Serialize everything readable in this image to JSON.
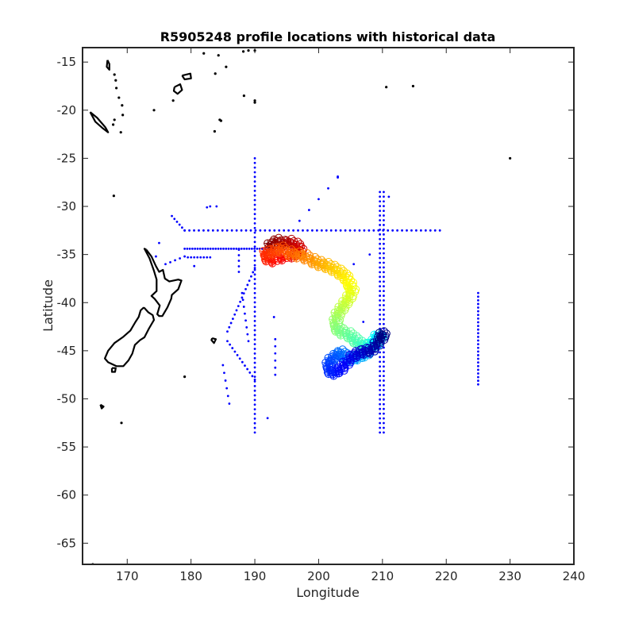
{
  "chart_data": {
    "type": "scatter",
    "title": "R5905248 profile locations with historical data",
    "xlabel": "Longitude",
    "ylabel": "Latitude",
    "xlim": [
      163,
      240
    ],
    "ylim": [
      -67.2,
      -13.5
    ],
    "xticks": [
      170,
      180,
      190,
      200,
      210,
      220,
      230,
      240
    ],
    "yticks": [
      -15,
      -20,
      -25,
      -30,
      -35,
      -40,
      -45,
      -50,
      -55,
      -60,
      -65
    ],
    "grid": false,
    "colors": {
      "historical": "#0000ff",
      "coast": "#000000",
      "axes": "#262626"
    },
    "colormap": "jet",
    "historical_data": {
      "marker": "dot",
      "segments": [
        {
          "from": [
            179,
            -32.5
          ],
          "to": [
            219,
            -32.5
          ],
          "n": 55
        },
        {
          "from": [
            190,
            -25
          ],
          "to": [
            190,
            -53.5
          ],
          "n": 60
        },
        {
          "from": [
            209.6,
            -28.5
          ],
          "to": [
            209.6,
            -53.5
          ],
          "n": 52
        },
        {
          "from": [
            210.2,
            -28.5
          ],
          "to": [
            210.2,
            -53.5
          ],
          "n": 52
        },
        {
          "from": [
            225,
            -39
          ],
          "to": [
            225,
            -48.5
          ],
          "n": 26
        },
        {
          "from": [
            177,
            -31
          ],
          "to": [
            179,
            -32.5
          ],
          "n": 6
        },
        {
          "from": [
            179,
            -34.4
          ],
          "to": [
            194,
            -34.4
          ],
          "n": 38
        },
        {
          "from": [
            179.5,
            -35.3
          ],
          "to": [
            183,
            -35.3
          ],
          "n": 8
        },
        {
          "from": [
            176,
            -36
          ],
          "to": [
            179,
            -35.2
          ],
          "n": 5
        },
        {
          "from": [
            190,
            -36.4
          ],
          "to": [
            185.7,
            -43
          ],
          "n": 16
        },
        {
          "from": [
            185.7,
            -44
          ],
          "to": [
            190,
            -48
          ],
          "n": 12
        },
        {
          "from": [
            188,
            -39
          ],
          "to": [
            189,
            -44
          ],
          "n": 8
        },
        {
          "from": [
            185,
            -46.5
          ],
          "to": [
            186,
            -50.5
          ],
          "n": 6
        },
        {
          "from": [
            197,
            -31.5
          ],
          "to": [
            203,
            -27
          ],
          "n": 5
        },
        {
          "from": [
            187.5,
            -34.5
          ],
          "to": [
            187.5,
            -36.8
          ],
          "n": 5
        },
        {
          "from": [
            193.2,
            -43.8
          ],
          "to": [
            193.2,
            -47.5
          ],
          "n": 6
        }
      ],
      "points": [
        [
          182.5,
          -30.1
        ],
        [
          183,
          -30
        ],
        [
          184,
          -30
        ],
        [
          175,
          -33.8
        ],
        [
          174.5,
          -35.2
        ],
        [
          180.5,
          -36.2
        ],
        [
          193,
          -41.5
        ],
        [
          192,
          -52
        ],
        [
          205.5,
          -36
        ],
        [
          207,
          -42
        ],
        [
          211,
          -29
        ],
        [
          203,
          -26.9
        ],
        [
          208,
          -35
        ]
      ]
    },
    "float_track": {
      "marker": "open-circle-and-plus",
      "color_scale": "jet (earliest = dark red, latest = dark blue)",
      "points": [
        [
          192.5,
          -34.0
        ],
        [
          193.5,
          -33.6
        ],
        [
          194.5,
          -33.8
        ],
        [
          195.5,
          -33.7
        ],
        [
          196.5,
          -34.0
        ],
        [
          197.0,
          -34.5
        ],
        [
          196.0,
          -35.0
        ],
        [
          194.5,
          -35.2
        ],
        [
          193.0,
          -35.5
        ],
        [
          192.0,
          -35.3
        ],
        [
          191.8,
          -34.8
        ],
        [
          193.0,
          -34.6
        ],
        [
          194.2,
          -34.4
        ],
        [
          195.5,
          -34.8
        ],
        [
          196.8,
          -35.0
        ],
        [
          198.0,
          -35.2
        ],
        [
          199.2,
          -35.6
        ],
        [
          200.2,
          -35.9
        ],
        [
          201.3,
          -36.1
        ],
        [
          202.3,
          -36.4
        ],
        [
          203.3,
          -36.8
        ],
        [
          204.2,
          -37.3
        ],
        [
          204.8,
          -38.0
        ],
        [
          205.2,
          -38.7
        ],
        [
          204.8,
          -39.4
        ],
        [
          204.2,
          -40.0
        ],
        [
          203.6,
          -40.6
        ],
        [
          203.0,
          -41.2
        ],
        [
          202.7,
          -41.9
        ],
        [
          202.9,
          -42.6
        ],
        [
          203.7,
          -43.0
        ],
        [
          204.8,
          -43.3
        ],
        [
          205.7,
          -43.8
        ],
        [
          206.6,
          -44.3
        ],
        [
          207.4,
          -44.5
        ],
        [
          208.1,
          -44.4
        ],
        [
          208.8,
          -44.0
        ],
        [
          209.2,
          -43.5
        ],
        [
          209.5,
          -43.6
        ],
        [
          209.0,
          -44.2
        ],
        [
          208.3,
          -44.9
        ],
        [
          207.4,
          -45.3
        ],
        [
          206.3,
          -45.6
        ],
        [
          205.3,
          -45.8
        ],
        [
          204.3,
          -45.6
        ],
        [
          203.5,
          -45.2
        ],
        [
          202.8,
          -45.5
        ],
        [
          202.0,
          -45.9
        ],
        [
          201.6,
          -46.4
        ],
        [
          201.8,
          -47.0
        ],
        [
          202.6,
          -47.2
        ],
        [
          203.5,
          -46.9
        ],
        [
          204.3,
          -46.3
        ],
        [
          205.3,
          -45.6
        ],
        [
          206.3,
          -45.2
        ],
        [
          207.3,
          -45.0
        ],
        [
          208.3,
          -44.9
        ],
        [
          209.1,
          -44.3
        ],
        [
          209.8,
          -43.7
        ],
        [
          210.0,
          -43.3
        ]
      ]
    },
    "coastline": {
      "polylines": [
        [
          [
            173.0,
            -34.5
          ],
          [
            173.8,
            -35.2
          ],
          [
            174.5,
            -36.2
          ],
          [
            175.0,
            -36.8
          ],
          [
            175.6,
            -36.6
          ],
          [
            175.9,
            -37.5
          ],
          [
            176.6,
            -37.8
          ],
          [
            178.0,
            -37.6
          ],
          [
            178.5,
            -37.7
          ],
          [
            178.0,
            -38.6
          ],
          [
            177.0,
            -39.2
          ],
          [
            176.9,
            -39.6
          ],
          [
            176.3,
            -40.5
          ],
          [
            175.5,
            -41.4
          ],
          [
            175.0,
            -41.4
          ],
          [
            174.7,
            -41.2
          ],
          [
            175.1,
            -40.3
          ],
          [
            174.3,
            -39.6
          ],
          [
            173.8,
            -39.3
          ],
          [
            174.6,
            -38.8
          ],
          [
            174.6,
            -37.6
          ],
          [
            174.2,
            -36.7
          ],
          [
            173.5,
            -35.4
          ],
          [
            172.7,
            -34.4
          ],
          [
            173.0,
            -34.5
          ]
        ],
        [
          [
            172.6,
            -40.5
          ],
          [
            173.3,
            -41.0
          ],
          [
            174.0,
            -41.3
          ],
          [
            174.2,
            -41.8
          ],
          [
            173.4,
            -42.7
          ],
          [
            172.7,
            -43.6
          ],
          [
            172.0,
            -43.9
          ],
          [
            171.2,
            -44.4
          ],
          [
            170.8,
            -45.3
          ],
          [
            170.2,
            -46.0
          ],
          [
            169.4,
            -46.6
          ],
          [
            168.3,
            -46.6
          ],
          [
            167.0,
            -46.2
          ],
          [
            166.5,
            -45.8
          ],
          [
            167.0,
            -45.0
          ],
          [
            168.0,
            -44.2
          ],
          [
            169.3,
            -43.6
          ],
          [
            170.5,
            -42.9
          ],
          [
            171.3,
            -42.0
          ],
          [
            171.8,
            -41.5
          ],
          [
            172.1,
            -40.8
          ],
          [
            172.6,
            -40.5
          ]
        ],
        [
          [
            167.6,
            -46.8
          ],
          [
            168.2,
            -46.8
          ],
          [
            168.1,
            -47.2
          ],
          [
            167.6,
            -47.2
          ],
          [
            167.6,
            -46.8
          ]
        ],
        [
          [
            164.2,
            -20.2
          ],
          [
            165.3,
            -20.8
          ],
          [
            166.6,
            -21.8
          ],
          [
            167.0,
            -22.3
          ],
          [
            166.2,
            -21.9
          ],
          [
            165.0,
            -21.2
          ],
          [
            164.2,
            -20.2
          ]
        ],
        [
          [
            177.4,
            -17.6
          ],
          [
            178.3,
            -17.3
          ],
          [
            178.6,
            -17.9
          ],
          [
            177.9,
            -18.3
          ],
          [
            177.3,
            -18.0
          ],
          [
            177.4,
            -17.6
          ]
        ],
        [
          [
            178.6,
            -16.4
          ],
          [
            179.9,
            -16.2
          ],
          [
            180.0,
            -16.7
          ],
          [
            179.0,
            -16.8
          ],
          [
            178.6,
            -16.4
          ]
        ],
        [
          [
            183.3,
            -43.7
          ],
          [
            183.9,
            -43.8
          ],
          [
            183.6,
            -44.2
          ],
          [
            183.2,
            -43.9
          ],
          [
            183.3,
            -43.7
          ]
        ],
        [
          [
            165.8,
            -50.6
          ],
          [
            166.3,
            -50.8
          ],
          [
            166.0,
            -51.0
          ],
          [
            165.8,
            -50.6
          ]
        ],
        [
          [
            166.9,
            -14.8
          ],
          [
            167.2,
            -15.2
          ],
          [
            167.2,
            -15.8
          ],
          [
            166.8,
            -15.5
          ],
          [
            166.9,
            -14.8
          ]
        ]
      ],
      "islands": [
        [
          168.0,
          -16.3
        ],
        [
          168.2,
          -16.9
        ],
        [
          168.3,
          -17.7
        ],
        [
          168.7,
          -18.7
        ],
        [
          169.2,
          -19.5
        ],
        [
          169.3,
          -20.5
        ],
        [
          168.0,
          -21.0
        ],
        [
          167.8,
          -21.5
        ],
        [
          167.9,
          -28.9
        ],
        [
          169.0,
          -22.3
        ],
        [
          179.0,
          -47.7
        ],
        [
          169.1,
          -52.5
        ],
        [
          164.6,
          -67.2
        ],
        [
          182.0,
          -14.1
        ],
        [
          184.3,
          -14.3
        ],
        [
          188.2,
          -13.9
        ],
        [
          189.0,
          -13.8
        ],
        [
          190.0,
          -13.8
        ],
        [
          188.3,
          -18.5
        ],
        [
          190.0,
          -19.0
        ],
        [
          190.0,
          -19.2
        ],
        [
          184.5,
          -21.0
        ],
        [
          184.7,
          -21.1
        ],
        [
          183.7,
          -22.2
        ],
        [
          185.5,
          -15.5
        ],
        [
          183.8,
          -16.2
        ],
        [
          210.6,
          -17.6
        ],
        [
          214.8,
          -17.5
        ],
        [
          230.0,
          -25.0
        ],
        [
          174.2,
          -20.0
        ],
        [
          177.2,
          -19.0
        ]
      ]
    }
  }
}
